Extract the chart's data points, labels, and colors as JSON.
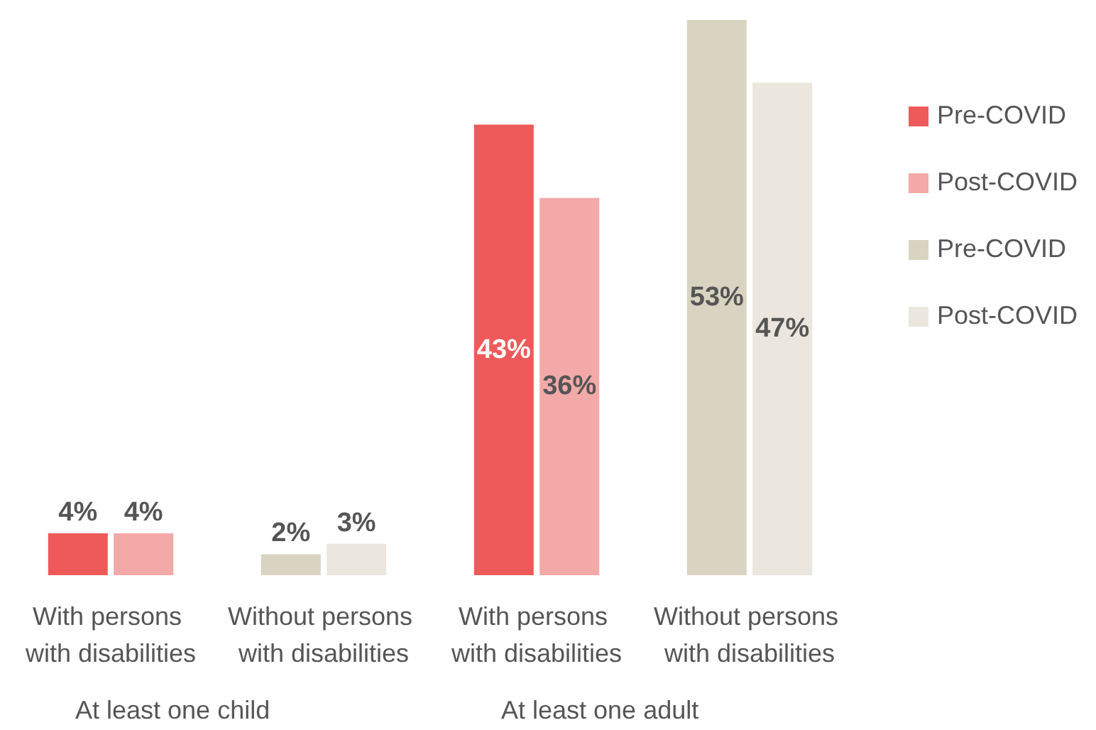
{
  "chart_data": {
    "type": "bar",
    "categories": [
      "With persons with disabilities",
      "Without persons with disabilities",
      "With persons with disabilities",
      "Without persons with disabilities"
    ],
    "series": [
      {
        "name": "Pre-COVID",
        "color": "#ee5a5a",
        "values": [
          4,
          null,
          43,
          null
        ],
        "value_labels": [
          "4%",
          null,
          "43%",
          null
        ]
      },
      {
        "name": "Post-COVID",
        "color": "#f4a9a9",
        "values": [
          4,
          null,
          36,
          null
        ],
        "value_labels": [
          "4%",
          null,
          "36%",
          null
        ]
      },
      {
        "name": "Pre-COVID",
        "color": "#d9d3c1",
        "values": [
          null,
          2,
          null,
          53
        ],
        "value_labels": [
          null,
          "2%",
          null,
          "53%"
        ]
      },
      {
        "name": "Post-COVID",
        "color": "#ebe7de",
        "values": [
          null,
          3,
          null,
          47
        ],
        "value_labels": [
          null,
          "3%",
          null,
          "47%"
        ]
      }
    ],
    "annotations": [
      "At least one child",
      "At least one adult"
    ],
    "ylim": [
      0,
      53
    ],
    "tick_labels": "x",
    "grid": false,
    "legend": "right"
  }
}
